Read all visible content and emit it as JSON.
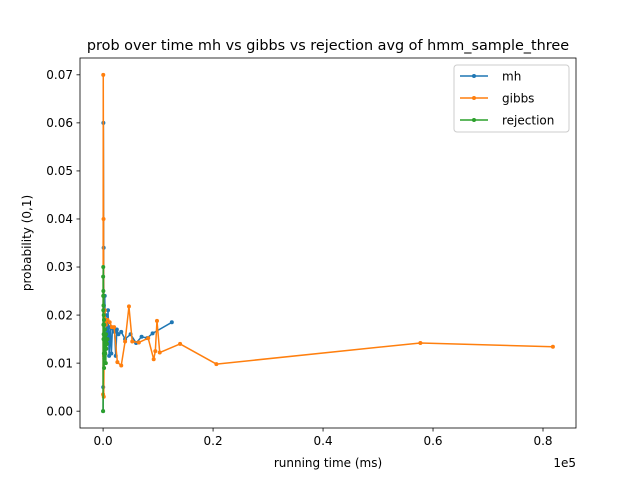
{
  "chart_data": {
    "type": "line",
    "title": "prob over time mh vs gibbs vs rejection avg of hmm_sample_three",
    "xlabel": "running time (ms)",
    "ylabel": "probability (0,1)",
    "x_multiplier_label": "1e5",
    "xlim": [
      -4200,
      86000
    ],
    "ylim": [
      -0.0035,
      0.0735
    ],
    "xticks": [
      0,
      20000,
      40000,
      60000,
      80000
    ],
    "xtick_labels": [
      "0.0",
      "0.2",
      "0.4",
      "0.6",
      "0.8"
    ],
    "yticks": [
      0.0,
      0.01,
      0.02,
      0.03,
      0.04,
      0.05,
      0.06,
      0.07
    ],
    "ytick_labels": [
      "0.00",
      "0.01",
      "0.02",
      "0.03",
      "0.04",
      "0.05",
      "0.06",
      "0.07"
    ],
    "legend_position": "upper right",
    "series": [
      {
        "name": "mh",
        "color": "#1f77b4",
        "x": [
          0,
          20,
          50,
          100,
          150,
          200,
          300,
          400,
          500,
          700,
          900,
          1100,
          1300,
          1500,
          1700,
          1900,
          2100,
          2300,
          2500,
          2800,
          3300,
          4000,
          5000,
          6000,
          7000,
          8000,
          9000,
          12500
        ],
        "y": [
          0.0,
          0.005,
          0.06,
          0.034,
          0.022,
          0.015,
          0.024,
          0.018,
          0.02,
          0.014,
          0.021,
          0.0115,
          0.0175,
          0.012,
          0.0172,
          0.0168,
          0.0165,
          0.0115,
          0.017,
          0.016,
          0.0165,
          0.015,
          0.016,
          0.0142,
          0.0155,
          0.0152,
          0.0162,
          0.0185
        ]
      },
      {
        "name": "gibbs",
        "color": "#ff7f0e",
        "x": [
          0,
          30,
          80,
          120,
          180,
          300,
          500,
          800,
          1200,
          1600,
          2000,
          2600,
          3300,
          4000,
          4700,
          5300,
          6500,
          8200,
          9200,
          9500,
          9800,
          10300,
          14000,
          20600,
          57700,
          81800
        ],
        "y": [
          0.0035,
          0.07,
          0.04,
          0.003,
          0.0115,
          0.021,
          0.018,
          0.019,
          0.0185,
          0.0175,
          0.0175,
          0.0102,
          0.0095,
          0.0145,
          0.0218,
          0.0145,
          0.0143,
          0.0152,
          0.0108,
          0.0125,
          0.0188,
          0.0122,
          0.014,
          0.0098,
          0.0142,
          0.0134
        ]
      },
      {
        "name": "rejection",
        "color": "#2ca02c",
        "x": [
          0,
          10,
          20,
          30,
          40,
          50,
          60,
          70,
          80,
          90,
          100,
          120,
          140,
          160,
          180,
          200,
          230,
          260,
          300,
          350,
          400,
          450,
          500,
          550,
          600,
          700,
          800
        ],
        "y": [
          0.0,
          0.028,
          0.024,
          0.03,
          0.021,
          0.025,
          0.018,
          0.022,
          0.015,
          0.024,
          0.016,
          0.02,
          0.012,
          0.019,
          0.009,
          0.018,
          0.011,
          0.016,
          0.013,
          0.017,
          0.012,
          0.015,
          0.01,
          0.016,
          0.013,
          0.014,
          0.015
        ]
      }
    ]
  }
}
